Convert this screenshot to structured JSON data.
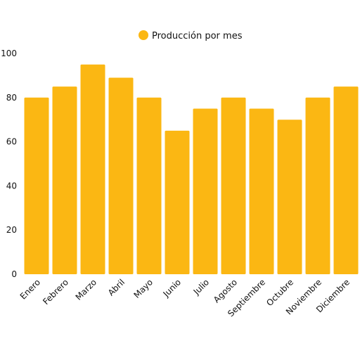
{
  "chart_data": {
    "type": "bar",
    "title": "",
    "xlabel": "",
    "ylabel": "",
    "categories": [
      "Enero",
      "Febrero",
      "Marzo",
      "Abril",
      "Mayo",
      "Junio",
      "Julio",
      "Agosto",
      "Septiembre",
      "Octubre",
      "Noviembre",
      "Diciembre"
    ],
    "series": [
      {
        "name": "Producción por mes",
        "color": "#FBB713",
        "values": [
          80,
          85,
          95,
          89,
          80,
          65,
          75,
          80,
          75,
          70,
          80,
          85
        ]
      }
    ],
    "ylim": [
      0,
      100
    ],
    "yticks": [
      0,
      20,
      40,
      60,
      80,
      100
    ],
    "grid": false,
    "legend": "top-center"
  }
}
